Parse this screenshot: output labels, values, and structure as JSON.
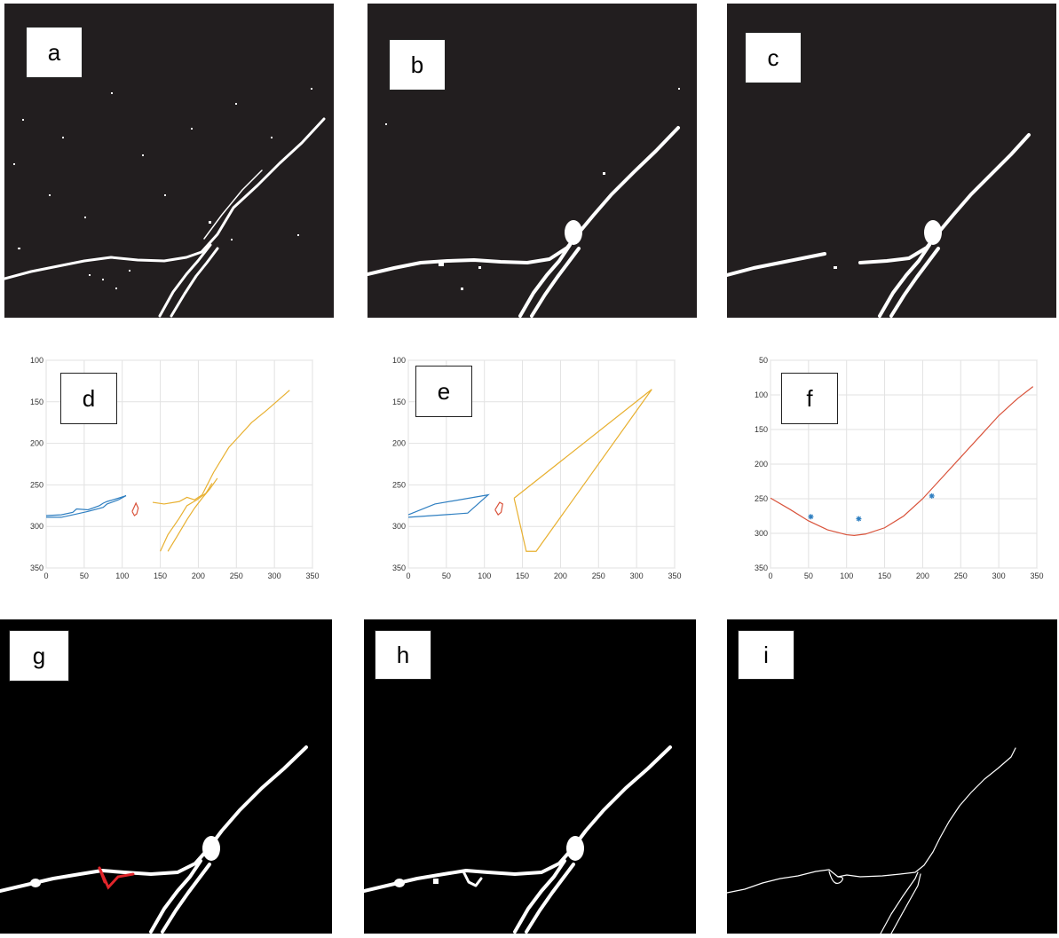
{
  "panels": {
    "a": {
      "label": "a"
    },
    "b": {
      "label": "b"
    },
    "c": {
      "label": "c"
    },
    "d": {
      "label": "d"
    },
    "e": {
      "label": "e"
    },
    "f": {
      "label": "f"
    },
    "g": {
      "label": "g"
    },
    "h": {
      "label": "h"
    },
    "i": {
      "label": "i"
    }
  },
  "colors": {
    "background_dark": "#221e1f",
    "background_black": "#000000",
    "crack": "#ffffff",
    "series_blue": "#2f7fc1",
    "series_red": "#d9533b",
    "series_yellow": "#e8b030",
    "branch_mark": "#e0252b"
  },
  "chart_data": [
    {
      "panel": "d",
      "type": "line",
      "xlim": [
        0,
        350
      ],
      "ylim": [
        350,
        100
      ],
      "x_ticks": [
        0,
        50,
        100,
        150,
        200,
        250,
        300,
        350
      ],
      "y_ticks": [
        100,
        150,
        200,
        250,
        300,
        350
      ],
      "grid": true,
      "series": [
        {
          "color": "blue",
          "x": [
            0,
            20,
            35,
            40,
            55,
            70,
            75,
            80,
            95,
            105,
            95,
            80,
            75,
            55,
            40,
            20,
            0
          ],
          "y": [
            287,
            286,
            283,
            279,
            280,
            275,
            272,
            270,
            266,
            263,
            268,
            273,
            277,
            282,
            285,
            289,
            289
          ]
        },
        {
          "color": "red",
          "x": [
            113,
            116,
            118,
            121,
            119,
            116,
            113
          ],
          "y": [
            282,
            276,
            272,
            278,
            285,
            287,
            282
          ]
        },
        {
          "color": "yellow",
          "x": [
            140,
            155,
            175,
            185,
            195,
            205,
            220,
            230,
            240,
            255,
            270,
            290,
            305,
            320
          ],
          "y": [
            271,
            273,
            270,
            265,
            268,
            262,
            235,
            220,
            205,
            190,
            175,
            160,
            148,
            136
          ]
        },
        {
          "color": "yellow",
          "x": [
            150,
            160,
            175,
            185,
            198,
            210,
            218
          ],
          "y": [
            330,
            310,
            290,
            275,
            268,
            260,
            248
          ]
        },
        {
          "color": "yellow",
          "x": [
            160,
            172,
            185,
            195,
            205,
            215,
            225
          ],
          "y": [
            330,
            312,
            292,
            278,
            266,
            255,
            242
          ]
        }
      ]
    },
    {
      "panel": "e",
      "type": "line",
      "xlim": [
        0,
        350
      ],
      "ylim": [
        350,
        100
      ],
      "x_ticks": [
        0,
        50,
        100,
        150,
        200,
        250,
        300,
        350
      ],
      "y_ticks": [
        100,
        150,
        200,
        250,
        300,
        350
      ],
      "grid": true,
      "series": [
        {
          "color": "blue",
          "x": [
            0,
            35,
            105,
            78,
            0
          ],
          "y": [
            286,
            273,
            262,
            284,
            289
          ]
        },
        {
          "color": "red",
          "x": [
            114,
            120,
            124,
            122,
            118,
            114
          ],
          "y": [
            280,
            271,
            273,
            283,
            286,
            280
          ]
        },
        {
          "color": "yellow",
          "x": [
            139,
            320,
            168,
            155,
            139
          ],
          "y": [
            266,
            135,
            330,
            330,
            266
          ]
        }
      ]
    },
    {
      "panel": "f",
      "type": "scatter",
      "xlim": [
        0,
        350
      ],
      "ylim": [
        350,
        50
      ],
      "x_ticks": [
        0,
        50,
        100,
        150,
        200,
        250,
        300,
        350
      ],
      "y_ticks": [
        50,
        100,
        150,
        200,
        250,
        300,
        350
      ],
      "grid": true,
      "points": {
        "x": [
          53,
          116,
          212
        ],
        "y": [
          276,
          279,
          246
        ]
      },
      "fit_curve": {
        "x": [
          0,
          25,
          50,
          75,
          100,
          110,
          125,
          150,
          175,
          200,
          225,
          250,
          275,
          300,
          325,
          345
        ],
        "y": [
          249,
          265,
          282,
          295,
          302,
          303,
          301,
          292,
          275,
          250,
          220,
          190,
          160,
          130,
          105,
          88
        ]
      }
    }
  ]
}
